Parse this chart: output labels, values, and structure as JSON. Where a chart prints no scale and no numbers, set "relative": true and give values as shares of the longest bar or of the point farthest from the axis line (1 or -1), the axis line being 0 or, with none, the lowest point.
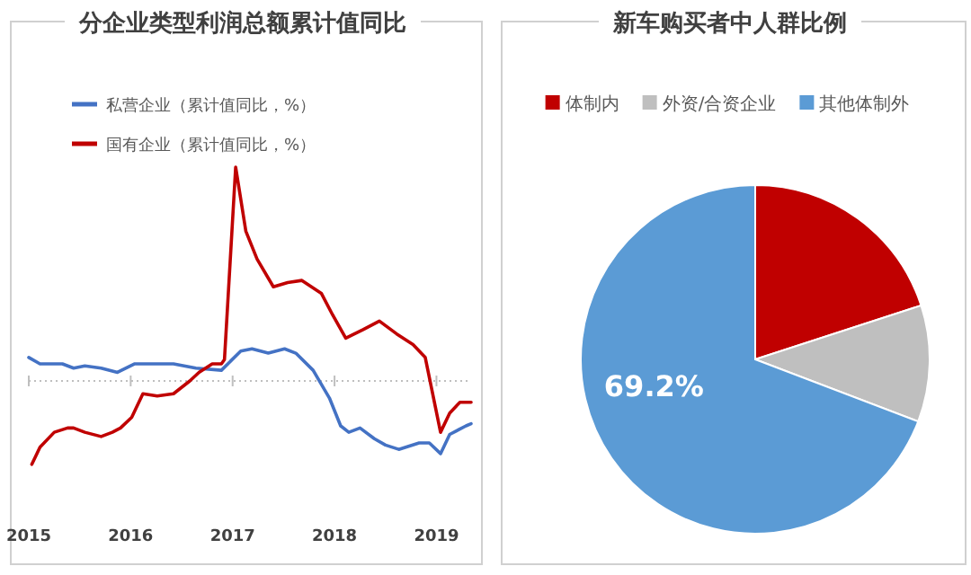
{
  "chart_data": [
    {
      "type": "line",
      "title": "分企业类型利润总额累计值同比",
      "relative": true,
      "legend": "top left",
      "ref_lines": [
        {
          "axis": "y",
          "value": 0,
          "color": "#bfbfbf",
          "line_style": "dotted"
        }
      ],
      "xlim": [
        2015,
        2019.34
      ],
      "xticks": [
        2015,
        2016,
        2017,
        2018,
        2019
      ],
      "series": [
        {
          "name": "私营企业（累计值同比，%）",
          "color": "#4472c4",
          "x": [
            2015.0,
            2015.11,
            2015.33,
            2015.44,
            2015.55,
            2015.71,
            2015.87,
            2016.04,
            2016.2,
            2016.42,
            2016.64,
            2016.89,
            2017.08,
            2017.19,
            2017.35,
            2017.51,
            2017.62,
            2017.79,
            2017.95,
            2018.06,
            2018.14,
            2018.25,
            2018.39,
            2018.5,
            2018.63,
            2018.83,
            2018.93,
            2019.04,
            2019.13,
            2019.29,
            2019.34
          ],
          "values": [
            0.11,
            0.08,
            0.08,
            0.06,
            0.07,
            0.06,
            0.04,
            0.08,
            0.08,
            0.08,
            0.06,
            0.05,
            0.14,
            0.15,
            0.13,
            0.15,
            0.13,
            0.05,
            -0.08,
            -0.21,
            -0.24,
            -0.22,
            -0.27,
            -0.3,
            -0.32,
            -0.29,
            -0.29,
            -0.34,
            -0.25,
            -0.21,
            -0.2
          ]
        },
        {
          "name": "国有企业（累计值同比，%）",
          "color": "#c00000",
          "x": [
            2015.03,
            2015.11,
            2015.25,
            2015.38,
            2015.44,
            2015.55,
            2015.71,
            2015.82,
            2015.9,
            2016.01,
            2016.12,
            2016.26,
            2016.42,
            2016.58,
            2016.67,
            2016.8,
            2016.89,
            2016.92,
            2017.03,
            2017.13,
            2017.24,
            2017.4,
            2017.54,
            2017.68,
            2017.87,
            2017.98,
            2018.11,
            2018.28,
            2018.44,
            2018.61,
            2018.77,
            2018.89,
            2019.04,
            2019.13,
            2019.23,
            2019.34
          ],
          "values": [
            -0.39,
            -0.31,
            -0.24,
            -0.22,
            -0.22,
            -0.24,
            -0.26,
            -0.24,
            -0.22,
            -0.17,
            -0.06,
            -0.07,
            -0.06,
            0.0,
            0.04,
            0.08,
            0.08,
            0.1,
            1.0,
            0.7,
            0.57,
            0.44,
            0.46,
            0.47,
            0.41,
            0.31,
            0.2,
            0.24,
            0.28,
            0.22,
            0.17,
            0.11,
            -0.24,
            -0.15,
            -0.1,
            -0.1
          ]
        }
      ]
    },
    {
      "type": "pie",
      "title": "新车购买者中人群比例",
      "legend": "top",
      "categories": [
        "体制内",
        "外资/合资企业",
        "其他体制外"
      ],
      "values": [
        20.0,
        10.8,
        69.2
      ],
      "colors": [
        "#c00000",
        "#bfbfbf",
        "#5b9bd5"
      ],
      "value_labels": [
        null,
        null,
        "69.2%"
      ]
    }
  ]
}
